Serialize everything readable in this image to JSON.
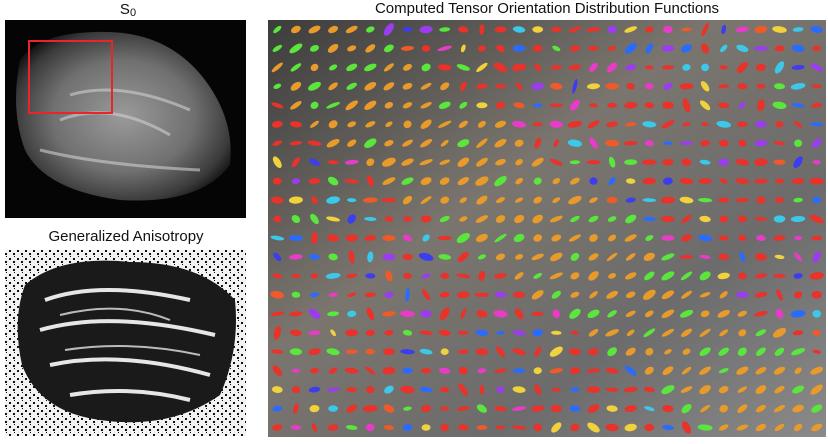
{
  "panels": [
    {
      "title": "S",
      "subscript": "0"
    },
    {
      "title": "Generalized Anisotropy"
    },
    {
      "title": "Computed Tensor Orientation Distribution Functions"
    }
  ]
}
